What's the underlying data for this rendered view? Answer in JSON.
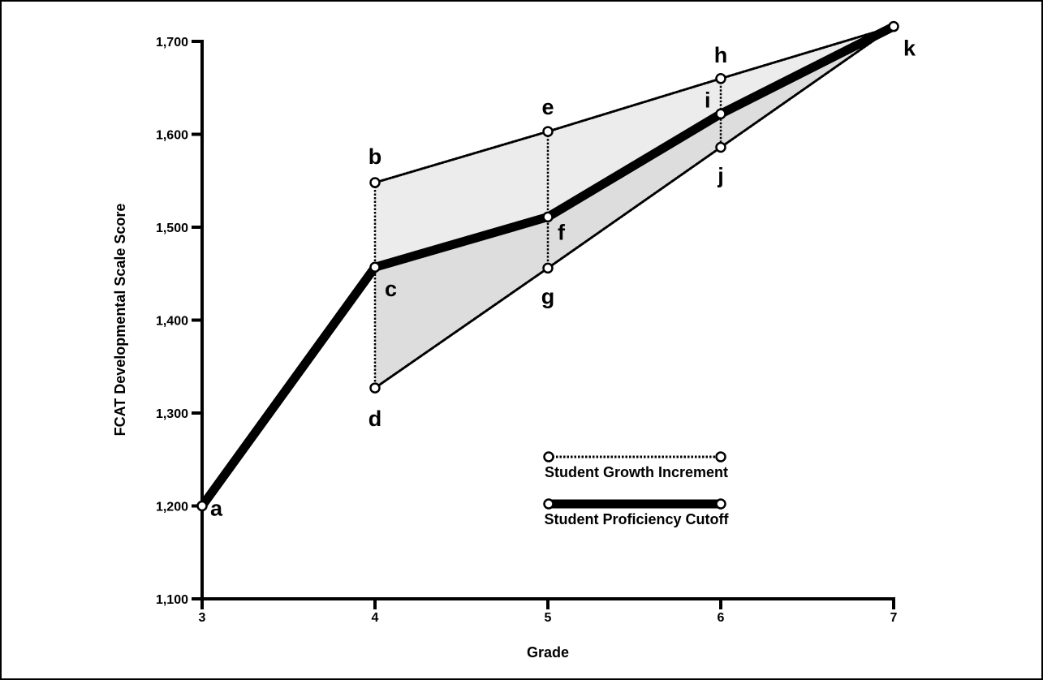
{
  "chart_data": {
    "type": "line",
    "xlabel": "Grade",
    "ylabel": "FCAT Developmental Scale Score",
    "xlim": [
      3,
      7
    ],
    "ylim": [
      1100,
      1700
    ],
    "x_ticks": [
      3,
      4,
      5,
      6,
      7
    ],
    "x_tick_labels": [
      "3",
      "4",
      "5",
      "6",
      "7"
    ],
    "y_ticks": [
      1100,
      1200,
      1300,
      1400,
      1500,
      1600,
      1700
    ],
    "y_tick_labels": [
      "1,100",
      "1,200",
      "1,300",
      "1,400",
      "1,500",
      "1,600",
      "1,700"
    ],
    "grid": false,
    "points": [
      {
        "label": "a",
        "x": 3,
        "y": 1200
      },
      {
        "label": "b",
        "x": 4,
        "y": 1548
      },
      {
        "label": "c",
        "x": 4,
        "y": 1457
      },
      {
        "label": "d",
        "x": 4,
        "y": 1327
      },
      {
        "label": "e",
        "x": 5,
        "y": 1603
      },
      {
        "label": "f",
        "x": 5,
        "y": 1511
      },
      {
        "label": "g",
        "x": 5,
        "y": 1456
      },
      {
        "label": "h",
        "x": 6,
        "y": 1660
      },
      {
        "label": "i",
        "x": 6,
        "y": 1622
      },
      {
        "label": "j",
        "x": 6,
        "y": 1586
      },
      {
        "label": "k",
        "x": 7,
        "y": 1716
      }
    ],
    "series": [
      {
        "name": "Student Proficiency Cutoff",
        "style": "thick-solid",
        "point_labels": [
          "a",
          "c",
          "f",
          "i",
          "k"
        ],
        "x": [
          3,
          4,
          5,
          6,
          7
        ],
        "y": [
          1200,
          1457,
          1511,
          1622,
          1716
        ]
      },
      {
        "name": "Student Growth Increment",
        "style": "dotted",
        "point_labels": [
          "b",
          "e",
          "h",
          "k"
        ],
        "x": [
          4,
          5,
          6,
          7
        ],
        "y": [
          1548,
          1603,
          1660,
          1716
        ]
      },
      {
        "name": "Student Growth Increment",
        "style": "dotted",
        "point_labels": [
          "d",
          "g",
          "j",
          "k"
        ],
        "x": [
          4,
          5,
          6,
          7
        ],
        "y": [
          1327,
          1456,
          1586,
          1716
        ]
      }
    ],
    "vertical_connectors": [
      {
        "x": 4,
        "from": "b",
        "to": "d"
      },
      {
        "x": 5,
        "from": "e",
        "to": "g"
      },
      {
        "x": 6,
        "from": "h",
        "to": "j"
      }
    ],
    "shaded_regions": [
      {
        "between": [
          "b-e-h-k",
          "c-f-i-k"
        ],
        "color": "#ececec"
      },
      {
        "between": [
          "c-f-i-k",
          "d-g-j-k"
        ],
        "color": "#dddddd"
      }
    ],
    "legend": [
      {
        "label": "Student Growth Increment",
        "style": "dotted"
      },
      {
        "label": "Student Proficiency Cutoff",
        "style": "thick-solid"
      }
    ],
    "legend_position": "lower-center-right"
  },
  "colors": {
    "line": "#000000",
    "upper_fill": "#ececec",
    "lower_fill": "#dddddd",
    "marker_fill": "#ffffff"
  }
}
